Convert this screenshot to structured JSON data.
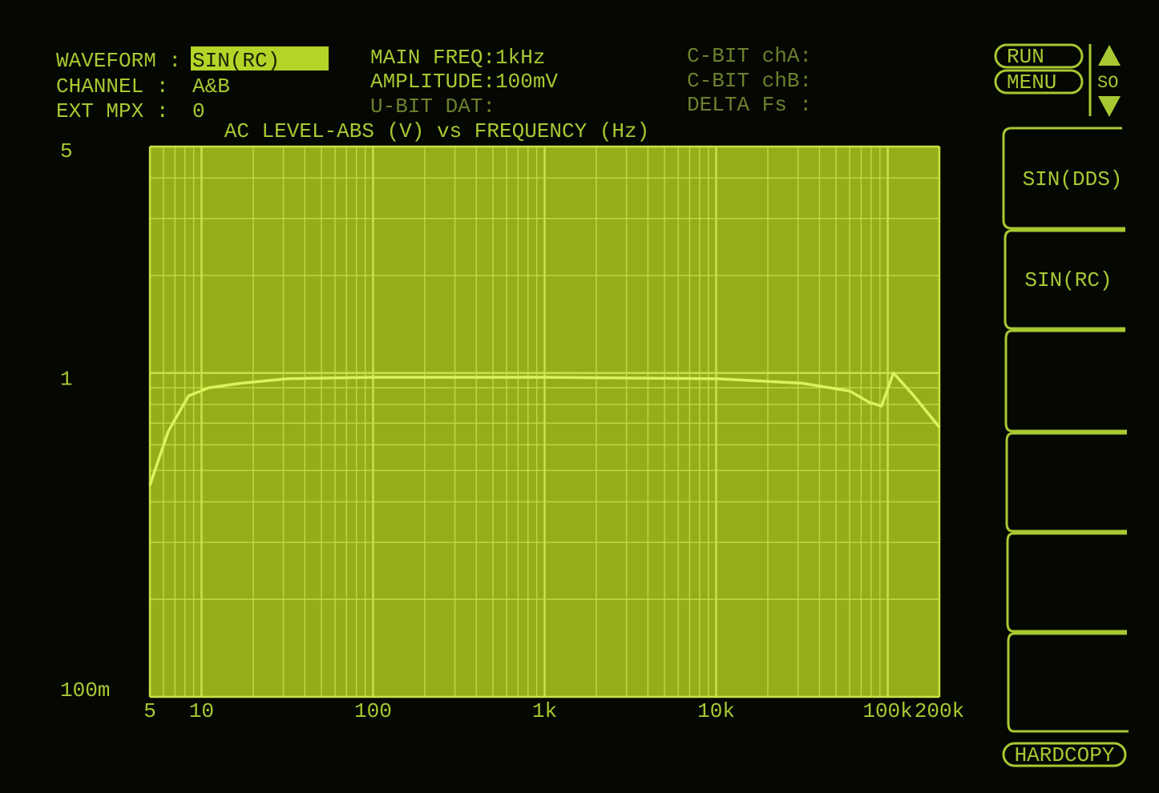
{
  "header": {
    "waveform_label": "WAVEFORM :",
    "waveform_value": "SIN(RC)",
    "channel_label": "CHANNEL  :",
    "channel_value": "A&B",
    "ext_mpx_label": "EXT MPX  :",
    "ext_mpx_value": "0",
    "main_freq": "MAIN FREQ:1kHz",
    "amplitude": "AMPLITUDE:100mV",
    "u_bit": "U-BIT DAT:",
    "c_bit_a": "C-BIT chA:",
    "c_bit_b": "C-BIT chB:",
    "delta_fs": "DELTA Fs :"
  },
  "controls": {
    "run": "RUN",
    "menu": "MENU",
    "so": "SO"
  },
  "softkeys": [
    "SIN(DDS)",
    "SIN(RC)",
    "HARDCOPY"
  ],
  "chart_data": {
    "type": "line",
    "title": "AC LEVEL-ABS (V) vs FREQUENCY (Hz)",
    "xscale": "log",
    "yscale": "log",
    "grid": true,
    "minor_grid": true,
    "plot_color": "#94ae1a",
    "grid_color": "#c9e24a",
    "color": "#dcf25a",
    "xlim": [
      5,
      200000
    ],
    "xticks": [
      5,
      10,
      100,
      {
        "value": 1000,
        "label": "1k"
      },
      {
        "value": 10000,
        "label": "10k"
      },
      {
        "value": 100000,
        "label": "100k"
      },
      {
        "value": 200000,
        "label": "200k"
      }
    ],
    "ylim": [
      0.1,
      5
    ],
    "yticks": [
      5,
      1,
      {
        "value": 0.1,
        "label": "100m"
      }
    ],
    "x": [
      5,
      6.4,
      8.4,
      11,
      17,
      32,
      100,
      1000,
      10000,
      31500,
      60000,
      78500,
      92000,
      108000,
      142000,
      200000
    ],
    "values": [
      0.45,
      0.66,
      0.85,
      0.9,
      0.93,
      0.96,
      0.97,
      0.97,
      0.96,
      0.93,
      0.88,
      0.81,
      0.79,
      1.0,
      0.85,
      0.68
    ]
  }
}
